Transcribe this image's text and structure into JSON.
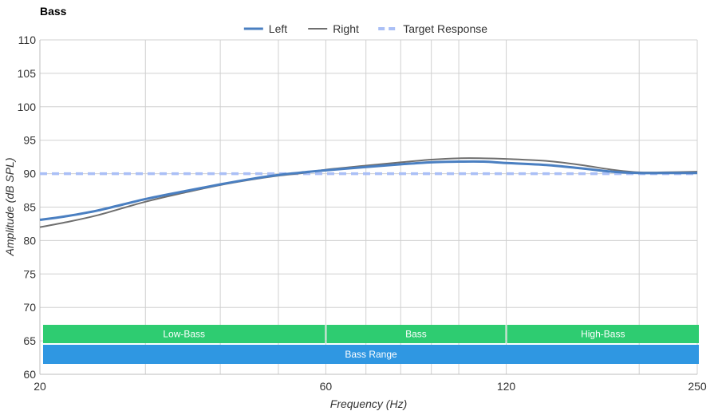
{
  "chart_data": {
    "type": "line",
    "title": "Bass",
    "xlabel": "Frequency (Hz)",
    "ylabel": "Amplitude (dB SPL)",
    "x_scale": "log",
    "xlim": [
      20,
      250
    ],
    "ylim": [
      60,
      110
    ],
    "x_tick_labels": [
      20,
      60,
      120,
      250
    ],
    "x_gridlines": [
      20,
      30,
      40,
      50,
      60,
      70,
      80,
      90,
      100,
      120,
      200,
      250
    ],
    "y_ticks": [
      60,
      65,
      70,
      75,
      80,
      85,
      90,
      95,
      100,
      105,
      110
    ],
    "grid": true,
    "legend": {
      "placement": "top-center",
      "entries": [
        {
          "name": "Left",
          "color": "#4a7fc1",
          "style": "solid-thick"
        },
        {
          "name": "Right",
          "color": "#6f6f6f",
          "style": "solid"
        },
        {
          "name": "Target Response",
          "color": "#aabff6",
          "style": "dashed"
        }
      ]
    },
    "series": [
      {
        "name": "Left",
        "color": "#4a7fc1",
        "points": [
          [
            20,
            83.1
          ],
          [
            22,
            83.6
          ],
          [
            25,
            84.5
          ],
          [
            30,
            86.2
          ],
          [
            35,
            87.4
          ],
          [
            40,
            88.4
          ],
          [
            45,
            89.2
          ],
          [
            50,
            89.8
          ],
          [
            55,
            90.2
          ],
          [
            60,
            90.5
          ],
          [
            70,
            91.0
          ],
          [
            80,
            91.4
          ],
          [
            90,
            91.7
          ],
          [
            100,
            91.8
          ],
          [
            110,
            91.8
          ],
          [
            120,
            91.6
          ],
          [
            140,
            91.3
          ],
          [
            160,
            90.8
          ],
          [
            180,
            90.3
          ],
          [
            200,
            90.1
          ],
          [
            220,
            90.1
          ],
          [
            250,
            90.1
          ]
        ]
      },
      {
        "name": "Right",
        "color": "#6f6f6f",
        "points": [
          [
            20,
            82.0
          ],
          [
            22,
            82.7
          ],
          [
            25,
            83.8
          ],
          [
            30,
            85.8
          ],
          [
            35,
            87.2
          ],
          [
            40,
            88.3
          ],
          [
            45,
            89.1
          ],
          [
            50,
            89.7
          ],
          [
            55,
            90.1
          ],
          [
            60,
            90.6
          ],
          [
            70,
            91.2
          ],
          [
            80,
            91.7
          ],
          [
            90,
            92.1
          ],
          [
            100,
            92.3
          ],
          [
            110,
            92.3
          ],
          [
            120,
            92.2
          ],
          [
            140,
            91.9
          ],
          [
            160,
            91.3
          ],
          [
            180,
            90.6
          ],
          [
            200,
            90.2
          ],
          [
            220,
            90.2
          ],
          [
            250,
            90.3
          ]
        ]
      },
      {
        "name": "Target Response",
        "color": "#aabff6",
        "points": [
          [
            20,
            90
          ],
          [
            250,
            90
          ]
        ]
      }
    ],
    "bands": [
      {
        "label": "Low-Bass",
        "x0": 20,
        "x1": 60,
        "row": 1,
        "color": "#2ecc71"
      },
      {
        "label": "Bass",
        "x0": 60,
        "x1": 120,
        "row": 1,
        "color": "#2ecc71"
      },
      {
        "label": "High-Bass",
        "x0": 120,
        "x1": 250,
        "row": 1,
        "color": "#2ecc71"
      },
      {
        "label": "Bass Range",
        "x0": 20,
        "x1": 250,
        "row": 2,
        "color": "#2f97e2"
      }
    ]
  }
}
